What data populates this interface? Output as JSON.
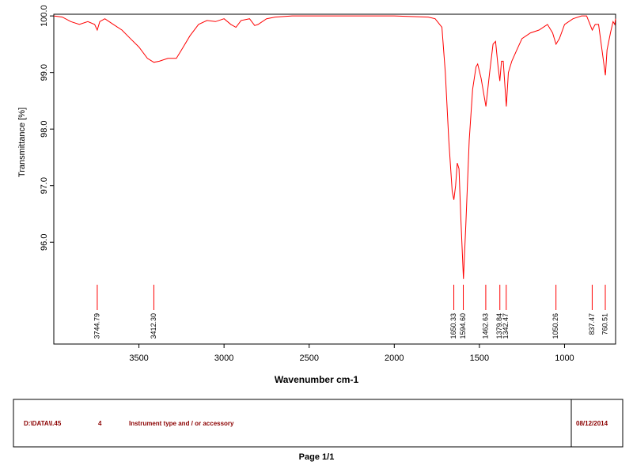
{
  "chart_data": {
    "type": "line",
    "x_label": "Wavenumber cm-1",
    "y_label": "Transmittance [%]",
    "x": [
      4000,
      3950,
      3900,
      3850,
      3800,
      3760,
      3745,
      3730,
      3700,
      3650,
      3600,
      3550,
      3500,
      3450,
      3412,
      3380,
      3330,
      3280,
      3250,
      3200,
      3150,
      3100,
      3050,
      3000,
      2960,
      2930,
      2900,
      2850,
      2820,
      2800,
      2750,
      2700,
      2600,
      2500,
      2400,
      2200,
      2000,
      1800,
      1760,
      1720,
      1700,
      1680,
      1660,
      1650,
      1640,
      1630,
      1620,
      1610,
      1594,
      1580,
      1560,
      1540,
      1520,
      1510,
      1490,
      1462,
      1440,
      1420,
      1405,
      1390,
      1380,
      1370,
      1360,
      1342,
      1330,
      1310,
      1280,
      1250,
      1200,
      1150,
      1100,
      1070,
      1050,
      1030,
      1000,
      950,
      900,
      870,
      850,
      837,
      820,
      800,
      780,
      760,
      750,
      730,
      715,
      705,
      700
    ],
    "series": [
      {
        "color": "#ff0000",
        "values": [
          100.0,
          99.98,
          99.9,
          99.85,
          99.9,
          99.85,
          99.75,
          99.9,
          99.95,
          99.85,
          99.75,
          99.6,
          99.45,
          99.25,
          99.18,
          99.2,
          99.25,
          99.25,
          99.4,
          99.65,
          99.85,
          99.92,
          99.9,
          99.95,
          99.85,
          99.8,
          99.92,
          99.95,
          99.83,
          99.85,
          99.95,
          99.98,
          100.0,
          100.0,
          100.0,
          100.0,
          100.0,
          99.98,
          99.95,
          99.8,
          99.0,
          97.8,
          96.9,
          96.75,
          97.0,
          97.4,
          97.3,
          96.5,
          95.35,
          96.3,
          97.8,
          98.7,
          99.1,
          99.15,
          98.9,
          98.4,
          99.0,
          99.5,
          99.55,
          99.1,
          98.85,
          99.2,
          99.2,
          98.4,
          99.0,
          99.2,
          99.4,
          99.6,
          99.7,
          99.75,
          99.85,
          99.7,
          99.5,
          99.6,
          99.85,
          99.95,
          100.0,
          100.0,
          99.85,
          99.75,
          99.85,
          99.85,
          99.4,
          98.95,
          99.4,
          99.7,
          99.9,
          99.85,
          99.95
        ]
      }
    ],
    "peaks": [
      3744.79,
      {
        "value": 3412.3,
        "label": "3412.30"
      },
      1650.33,
      {
        "value": 1594.6,
        "label": "1594.60"
      },
      1462.63,
      1379.84,
      1342.47,
      1050.26,
      837.47,
      760.51
    ],
    "xlim": [
      4000,
      700
    ],
    "ylim": [
      94.2,
      100.03
    ],
    "xticks": [
      3500,
      3000,
      2500,
      2000,
      1500,
      1000
    ],
    "yticks": [
      {
        "value": 100,
        "label": "100.0"
      },
      {
        "value": 99,
        "label": "99.0"
      },
      {
        "value": 98,
        "label": "98.0"
      },
      {
        "value": 97,
        "label": "97.0"
      },
      {
        "value": 96,
        "label": "96.0"
      }
    ]
  },
  "footer": {
    "path": "D:\\DATA\\I.45",
    "number": "4",
    "instrument": "Instrument type and / or accessory",
    "date": "08/12/2014"
  },
  "page": "Page 1/1"
}
